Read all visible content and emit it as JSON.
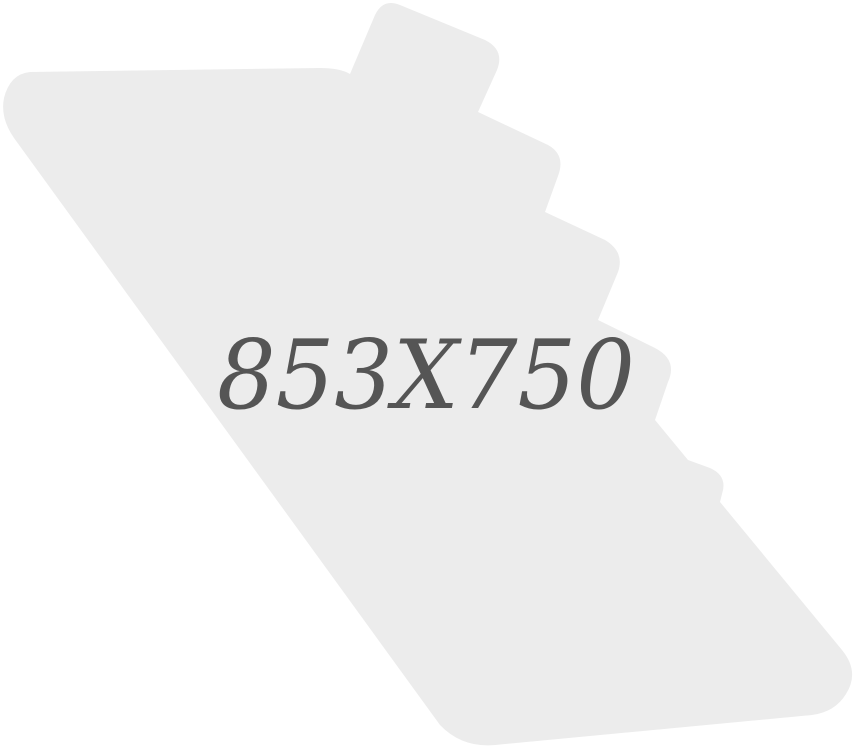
{
  "placeholder": {
    "dimensions_label": "853X750",
    "shape_color": "#ececec",
    "text_color": "#555555",
    "background_color": "#ffffff"
  }
}
